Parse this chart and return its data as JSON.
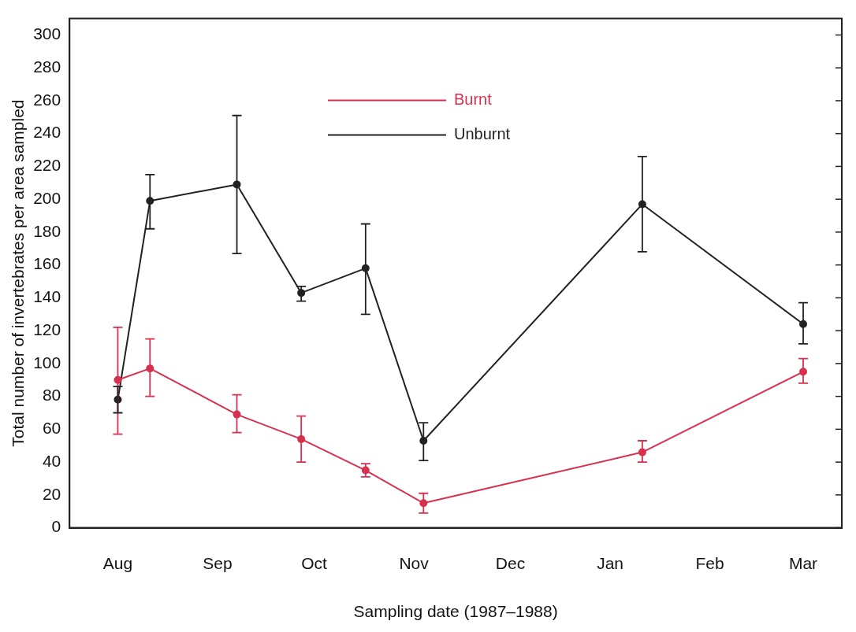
{
  "chart_data": {
    "type": "line",
    "xlabel": "Sampling date (1987–1988)",
    "ylabel": "Total number of invertebrates per area sampled",
    "x": [
      "1987-08-01",
      "1987-08-11",
      "1987-09-07",
      "1987-09-27",
      "1987-10-17",
      "1987-11-04",
      "1988-01-11",
      "1988-03-01"
    ],
    "xlim": [
      "1987-07-17",
      "1988-03-13"
    ],
    "xticks": [
      {
        "value": "1987-08-01",
        "label": "Aug"
      },
      {
        "value": "1987-09-01",
        "label": "Sep"
      },
      {
        "value": "1987-10-01",
        "label": "Oct"
      },
      {
        "value": "1987-11-01",
        "label": "Nov"
      },
      {
        "value": "1987-12-01",
        "label": "Dec"
      },
      {
        "value": "1988-01-01",
        "label": "Jan"
      },
      {
        "value": "1988-02-01",
        "label": "Feb"
      },
      {
        "value": "1988-03-01",
        "label": "Mar"
      }
    ],
    "ylim": [
      0,
      310
    ],
    "yticks": [
      0,
      20,
      40,
      60,
      80,
      100,
      120,
      140,
      160,
      180,
      200,
      220,
      240,
      260,
      280,
      300
    ],
    "series": [
      {
        "name": "Burnt",
        "color": "#d8304f",
        "values": [
          90,
          97,
          69,
          54,
          35,
          15,
          46,
          95
        ],
        "errors": [
          [
            57,
            122
          ],
          [
            80,
            115
          ],
          [
            58,
            81
          ],
          [
            40,
            68
          ],
          [
            31,
            39
          ],
          [
            9,
            21
          ],
          [
            40,
            53
          ],
          [
            88,
            103
          ]
        ]
      },
      {
        "name": "Unburnt",
        "color": "#222222",
        "values": [
          78,
          199,
          209,
          143,
          158,
          53,
          197,
          124
        ],
        "errors": [
          [
            70,
            86
          ],
          [
            182,
            215
          ],
          [
            167,
            251
          ],
          [
            138,
            147
          ],
          [
            130,
            185
          ],
          [
            41,
            64
          ],
          [
            168,
            226
          ],
          [
            112,
            137
          ]
        ]
      }
    ],
    "marker": "circle",
    "line_style": "solid",
    "grid": false,
    "legend": "top"
  }
}
